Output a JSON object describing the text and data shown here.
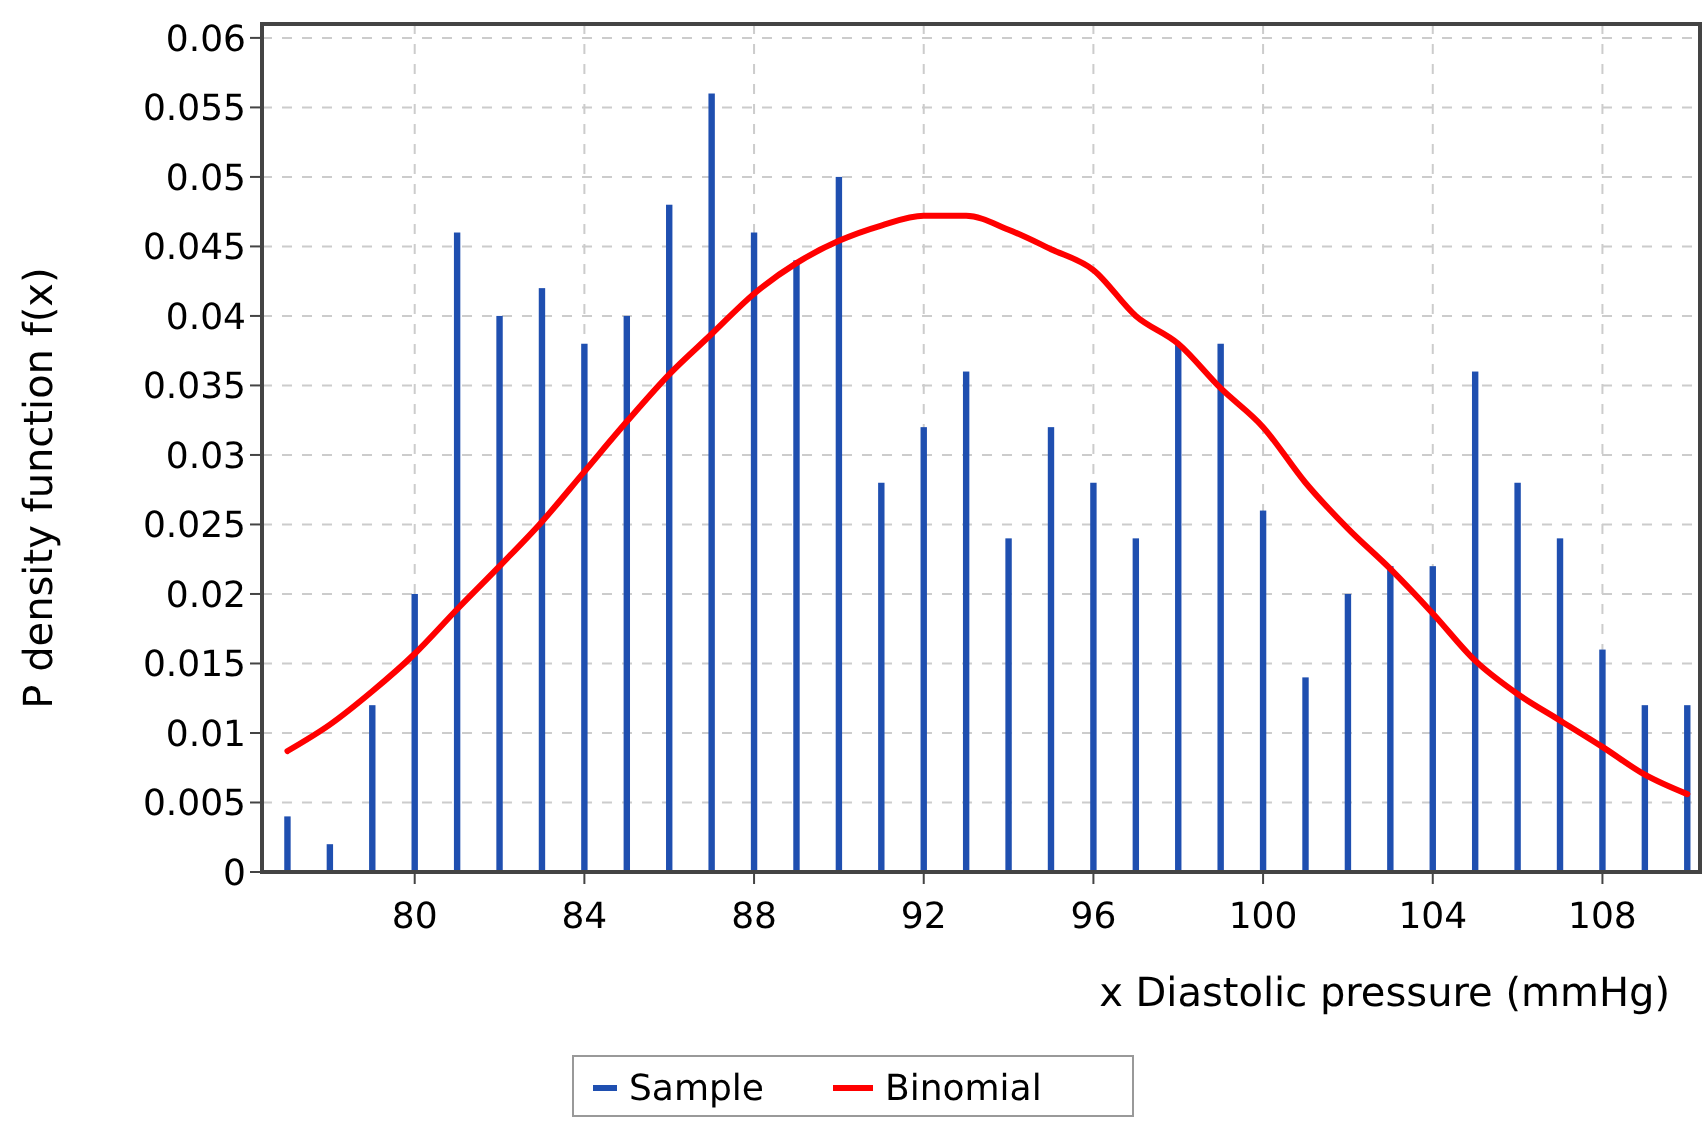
{
  "chart_data": {
    "type": "bar",
    "xlabel": "x Diastolic pressure (mmHg)",
    "ylabel": "P density function f(x)",
    "x": [
      77,
      78,
      79,
      80,
      81,
      82,
      83,
      84,
      85,
      86,
      87,
      88,
      89,
      90,
      91,
      92,
      93,
      94,
      95,
      96,
      97,
      98,
      99,
      100,
      101,
      102,
      103,
      104,
      105,
      106,
      107,
      108,
      109,
      110
    ],
    "series": [
      {
        "name": "Sample",
        "color": "#1f4fb0",
        "values": [
          0.004,
          0.002,
          0.012,
          0.02,
          0.046,
          0.04,
          0.042,
          0.038,
          0.04,
          0.048,
          0.056,
          0.046,
          0.044,
          0.05,
          0.028,
          0.032,
          0.036,
          0.024,
          0.032,
          0.028,
          0.024,
          0.038,
          0.038,
          0.026,
          0.014,
          0.02,
          0.022,
          0.022,
          0.036,
          0.028,
          0.024,
          0.016,
          0.012,
          0.012
        ]
      },
      {
        "name": "Binomial",
        "type": "line",
        "color": "#ff0000",
        "values": [
          0.0087,
          0.0106,
          0.013,
          0.0157,
          0.0189,
          0.022,
          0.0252,
          0.0288,
          0.0324,
          0.0358,
          0.0387,
          0.0416,
          0.0438,
          0.0454,
          0.0465,
          0.0472,
          0.0472,
          0.0462,
          0.0448,
          0.0433,
          0.04,
          0.038,
          0.0348,
          0.032,
          0.028,
          0.0247,
          0.0218,
          0.0186,
          0.0152,
          0.0128,
          0.0109,
          0.009,
          0.007,
          0.0056
        ]
      }
    ],
    "xlim": [
      76.4,
      110.3
    ],
    "xticks": [
      80,
      84,
      88,
      92,
      96,
      100,
      104,
      108
    ],
    "ylim": [
      0,
      0.061
    ],
    "yticks": [
      0,
      0.005,
      0.01,
      0.015,
      0.02,
      0.025,
      0.03,
      0.035,
      0.04,
      0.045,
      0.05,
      0.055,
      0.06
    ],
    "grid": true,
    "legend": "bottom",
    "marker": "none",
    "line_style": "solid"
  }
}
